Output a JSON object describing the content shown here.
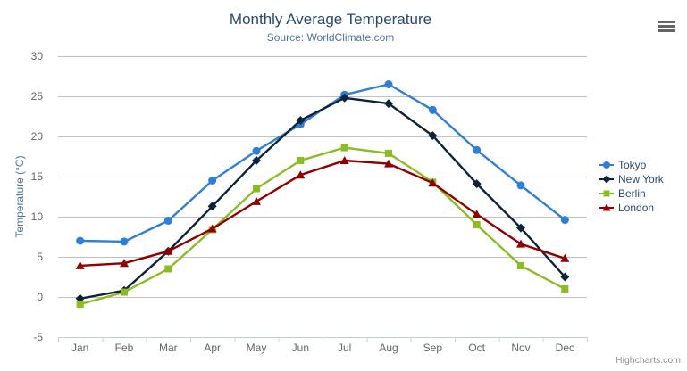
{
  "ui": {
    "credits": "Highcharts.com",
    "export_icon": "hamburger-icon"
  },
  "chart_data": {
    "type": "line",
    "title": "Monthly Average Temperature",
    "subtitle": "Source: WorldClimate.com",
    "xlabel": "",
    "ylabel": "Temperature (°C)",
    "ylim": [
      -5,
      30
    ],
    "ytick_step": 5,
    "grid": true,
    "legend_position": "right-middle",
    "categories": [
      "Jan",
      "Feb",
      "Mar",
      "Apr",
      "May",
      "Jun",
      "Jul",
      "Aug",
      "Sep",
      "Oct",
      "Nov",
      "Dec"
    ],
    "series": [
      {
        "name": "Tokyo",
        "color": "#2f7ed8",
        "marker": "circle",
        "values": [
          7.0,
          6.9,
          9.5,
          14.5,
          18.2,
          21.5,
          25.2,
          26.5,
          23.3,
          18.3,
          13.9,
          9.6
        ]
      },
      {
        "name": "New York",
        "color": "#0d233a",
        "marker": "diamond",
        "values": [
          -0.2,
          0.8,
          5.7,
          11.3,
          17.0,
          22.0,
          24.8,
          24.1,
          20.1,
          14.1,
          8.6,
          2.5
        ]
      },
      {
        "name": "Berlin",
        "color": "#8bbc21",
        "marker": "square",
        "values": [
          -0.9,
          0.6,
          3.5,
          8.4,
          13.5,
          17.0,
          18.6,
          17.9,
          14.3,
          9.0,
          3.9,
          1.0
        ]
      },
      {
        "name": "London",
        "color": "#910000",
        "marker": "triangle",
        "values": [
          3.9,
          4.2,
          5.7,
          8.5,
          11.9,
          15.2,
          17.0,
          16.6,
          14.2,
          10.3,
          6.6,
          4.8
        ]
      }
    ],
    "styles": {
      "grid_color": "#c0c0c0",
      "axis_color": "#c0d0e0",
      "label_color": "#666666",
      "axis_title_color": "#4d759e"
    }
  }
}
